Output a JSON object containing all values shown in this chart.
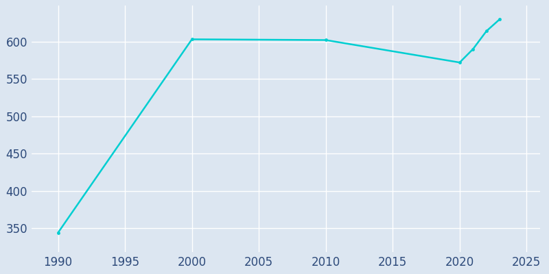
{
  "years": [
    1990,
    2000,
    2010,
    2020,
    2021,
    2022,
    2023
  ],
  "population": [
    344,
    603,
    602,
    572,
    590,
    614,
    630
  ],
  "line_color": "#00CED1",
  "marker_color": "#00CED1",
  "plot_bg_color": "#dce6f1",
  "fig_bg_color": "#dce6f1",
  "grid_color": "#ffffff",
  "xlabel": "",
  "ylabel": "",
  "xlim": [
    1988,
    2026
  ],
  "ylim": [
    318,
    648
  ],
  "xticks": [
    1990,
    1995,
    2000,
    2005,
    2010,
    2015,
    2020,
    2025
  ],
  "yticks": [
    350,
    400,
    450,
    500,
    550,
    600
  ],
  "tick_label_color": "#2d4a7a",
  "tick_label_size": 12,
  "figsize": [
    8.0,
    4.0
  ],
  "dpi": 100,
  "linewidth": 1.8,
  "markersize": 3.5
}
